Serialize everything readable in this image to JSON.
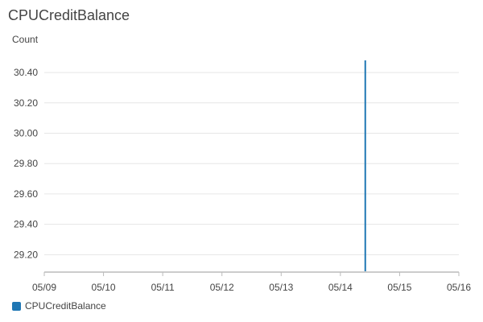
{
  "chart_data": {
    "type": "line",
    "title": "CPUCreditBalance",
    "ylabel": "Count",
    "xlabel": "",
    "ylim": [
      29.085,
      30.48
    ],
    "yticks": [
      30.4,
      30.2,
      30.0,
      29.8,
      29.6,
      29.4,
      29.2
    ],
    "xticks": [
      "05/09",
      "05/10",
      "05/11",
      "05/12",
      "05/13",
      "05/14",
      "05/15",
      "05/16"
    ],
    "xlim": [
      0,
      7
    ],
    "grid": true,
    "legend_position": "bottom-left",
    "series": [
      {
        "name": "CPUCreditBalance",
        "color": "#1f77b4",
        "points": [
          {
            "x": 5.42,
            "y": 29.09
          },
          {
            "x": 5.42,
            "y": 30.48
          }
        ]
      }
    ]
  }
}
